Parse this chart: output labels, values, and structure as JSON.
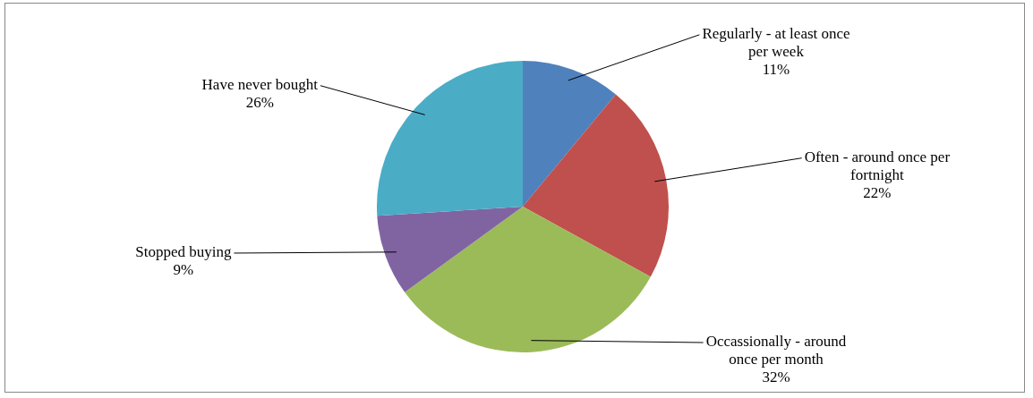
{
  "chart_data": {
    "type": "pie",
    "categories": [
      "Regularly - at least once per week",
      "Often - around once per fortnight",
      "Occassionally - around once per month",
      "Stopped buying",
      "Have never bought"
    ],
    "values": [
      11,
      22,
      32,
      9,
      26
    ],
    "value_labels": [
      "11%",
      "22%",
      "32%",
      "9%",
      "26%"
    ],
    "colors": [
      "#4f81bd",
      "#c0504d",
      "#9bbb59",
      "#8064a2",
      "#4bacc6"
    ],
    "legend": false
  }
}
